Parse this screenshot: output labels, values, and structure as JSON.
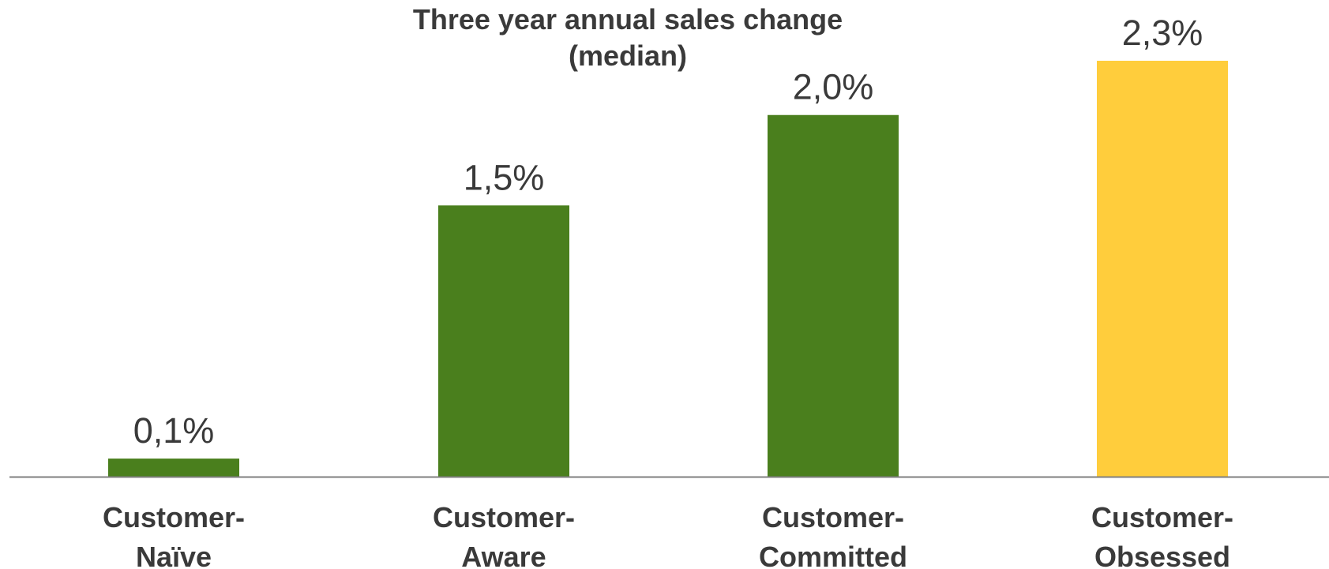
{
  "chart_data": {
    "type": "bar",
    "title_lines": [
      "Three year annual sales change",
      "(median)"
    ],
    "categories": [
      [
        "Customer-",
        "Naïve"
      ],
      [
        "Customer-",
        "Aware"
      ],
      [
        "Customer-",
        "Committed"
      ],
      [
        "Customer-",
        "Obsessed"
      ]
    ],
    "values": [
      0.1,
      1.5,
      2.0,
      2.3
    ],
    "data_labels": [
      "0,1%",
      "1,5%",
      "2,0%",
      "2,3%"
    ],
    "unit": "%",
    "ylim": [
      0,
      2.3
    ],
    "grid": false,
    "legend": "none",
    "bar_colors": [
      "#4a7f1d",
      "#4a7f1d",
      "#4a7f1d",
      "#ffcd3c"
    ],
    "axis_color": "#7f7f7f"
  }
}
